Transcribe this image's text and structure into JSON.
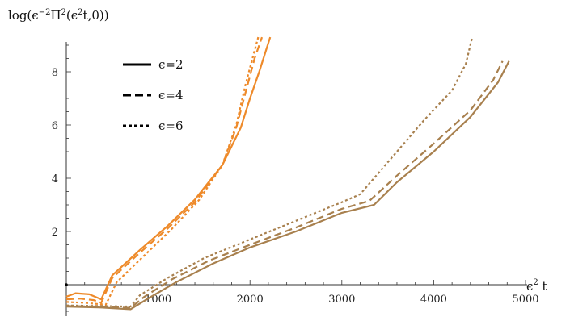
{
  "chart_data": {
    "type": "line",
    "ylabel_parts": [
      "log(ϵ",
      "−2",
      "Π",
      "2",
      "(ϵ",
      "2",
      "t,0))"
    ],
    "xlabel_parts": [
      "ϵ",
      "2",
      " t"
    ],
    "xlim": [
      0,
      5000
    ],
    "ylim": [
      -1,
      9
    ],
    "x_ticks": [
      1000,
      2000,
      3000,
      4000,
      5000
    ],
    "y_ticks": [
      2,
      4,
      6,
      8
    ],
    "legend_position": "top-left",
    "legend": [
      {
        "label": "ϵ=2",
        "style": "solid"
      },
      {
        "label": "ϵ=4",
        "style": "dashed"
      },
      {
        "label": "ϵ=6",
        "style": "dotted"
      }
    ],
    "colors": {
      "orange": "#ee8a2a",
      "brown": "#a8804e",
      "axis": "#333333"
    },
    "series": [
      {
        "group": "orange",
        "style": "solid",
        "points": [
          [
            0,
            -0.45
          ],
          [
            100,
            -0.32
          ],
          [
            250,
            -0.36
          ],
          [
            380,
            -0.55
          ],
          [
            500,
            0.35
          ],
          [
            800,
            1.3
          ],
          [
            1100,
            2.2
          ],
          [
            1400,
            3.2
          ],
          [
            1700,
            4.5
          ],
          [
            1900,
            5.9
          ],
          [
            2000,
            7.0
          ],
          [
            2100,
            8.0
          ],
          [
            2220,
            9.3
          ]
        ]
      },
      {
        "group": "orange",
        "style": "dashed",
        "points": [
          [
            0,
            -0.55
          ],
          [
            150,
            -0.52
          ],
          [
            300,
            -0.58
          ],
          [
            380,
            -0.68
          ],
          [
            500,
            0.25
          ],
          [
            800,
            1.2
          ],
          [
            1100,
            2.1
          ],
          [
            1400,
            3.1
          ],
          [
            1700,
            4.5
          ],
          [
            1850,
            5.9
          ],
          [
            1950,
            7.2
          ],
          [
            2050,
            8.5
          ],
          [
            2130,
            9.3
          ]
        ]
      },
      {
        "group": "orange",
        "style": "dotted",
        "points": [
          [
            0,
            -0.65
          ],
          [
            200,
            -0.68
          ],
          [
            330,
            -0.72
          ],
          [
            430,
            -0.75
          ],
          [
            550,
            0.1
          ],
          [
            850,
            1.1
          ],
          [
            1150,
            2.1
          ],
          [
            1450,
            3.2
          ],
          [
            1700,
            4.5
          ],
          [
            1850,
            6.0
          ],
          [
            1950,
            7.5
          ],
          [
            2050,
            8.8
          ],
          [
            2090,
            9.3
          ]
        ]
      },
      {
        "group": "brown",
        "style": "solid",
        "points": [
          [
            0,
            -0.82
          ],
          [
            350,
            -0.85
          ],
          [
            700,
            -0.92
          ],
          [
            900,
            -0.5
          ],
          [
            1200,
            0.1
          ],
          [
            1600,
            0.8
          ],
          [
            2000,
            1.4
          ],
          [
            2500,
            2.0
          ],
          [
            3000,
            2.7
          ],
          [
            3350,
            3.0
          ],
          [
            3600,
            3.85
          ],
          [
            4000,
            5.0
          ],
          [
            4400,
            6.3
          ],
          [
            4700,
            7.6
          ],
          [
            4820,
            8.4
          ]
        ]
      },
      {
        "group": "brown",
        "style": "dashed",
        "points": [
          [
            0,
            -0.8
          ],
          [
            350,
            -0.82
          ],
          [
            700,
            -0.87
          ],
          [
            850,
            -0.45
          ],
          [
            1150,
            0.2
          ],
          [
            1550,
            0.9
          ],
          [
            2000,
            1.5
          ],
          [
            2500,
            2.15
          ],
          [
            3000,
            2.85
          ],
          [
            3300,
            3.15
          ],
          [
            3600,
            4.1
          ],
          [
            4000,
            5.3
          ],
          [
            4400,
            6.55
          ],
          [
            4650,
            7.7
          ],
          [
            4750,
            8.4
          ]
        ]
      },
      {
        "group": "brown",
        "style": "dotted",
        "points": [
          [
            0,
            -0.78
          ],
          [
            350,
            -0.8
          ],
          [
            700,
            -0.82
          ],
          [
            800,
            -0.4
          ],
          [
            1100,
            0.25
          ],
          [
            1500,
            1.0
          ],
          [
            2000,
            1.7
          ],
          [
            2500,
            2.4
          ],
          [
            3000,
            3.1
          ],
          [
            3200,
            3.4
          ],
          [
            3500,
            4.6
          ],
          [
            3900,
            6.2
          ],
          [
            4200,
            7.3
          ],
          [
            4350,
            8.3
          ],
          [
            4420,
            9.3
          ]
        ]
      }
    ]
  }
}
